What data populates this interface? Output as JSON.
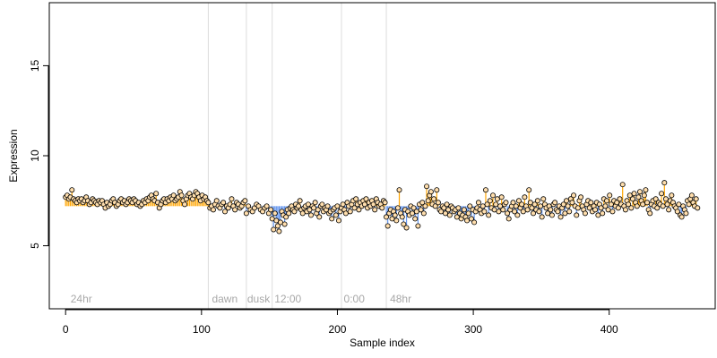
{
  "chart_data": {
    "type": "scatter",
    "xlabel": "Sample index",
    "ylabel": "Expression",
    "xlim": [
      -12,
      478
    ],
    "ylim": [
      1.5,
      18.5
    ],
    "x_ticks": [
      0,
      100,
      200,
      300,
      400
    ],
    "y_ticks": [
      5,
      10,
      15
    ],
    "baseline": 7.2,
    "grid": false,
    "colors": {
      "above": "#ffa500",
      "below": "#6495ed",
      "point_fill": "#ffdead",
      "point_stroke": "#000000",
      "divider": "#dcdcdc",
      "condition_text": "#a8a8a8"
    },
    "dividers": [
      105,
      133,
      152,
      203,
      236
    ],
    "conditions": [
      {
        "label": "24hr",
        "x": 3
      },
      {
        "label": "dawn",
        "x": 107
      },
      {
        "label": "dusk",
        "x": 133
      },
      {
        "label": "12:00",
        "x": 153
      },
      {
        "label": "0:00",
        "x": 204
      },
      {
        "label": "48hr",
        "x": 238
      }
    ],
    "segments": [
      {
        "start": 0,
        "end": 105,
        "values": [
          7.7,
          7.8,
          7.6,
          7.7,
          8.1,
          7.6,
          7.5,
          7.4,
          7.6,
          7.5,
          7.6,
          7.4,
          7.5,
          7.7,
          7.5,
          7.3,
          7.4,
          7.6,
          7.5,
          7.4,
          7.3,
          7.5,
          7.4,
          7.5,
          7.3,
          7.1,
          7.4,
          7.2,
          7.3,
          7.5,
          7.6,
          7.4,
          7.2,
          7.3,
          7.5,
          7.6,
          7.4,
          7.5,
          7.3,
          7.4,
          7.6,
          7.5,
          7.4,
          7.6,
          7.5,
          7.3,
          7.4,
          7.2,
          7.3,
          7.5,
          7.4,
          7.6,
          7.5,
          7.7,
          7.8,
          7.6,
          7.5,
          7.9,
          7.4,
          7.1,
          7.3,
          7.5,
          7.6,
          7.4,
          7.6,
          7.5,
          7.7,
          7.6,
          7.8,
          7.5,
          7.6,
          7.7,
          8.0,
          7.8,
          7.5,
          7.3,
          7.6,
          7.8,
          7.9,
          7.7,
          7.6,
          7.8,
          8.0,
          7.9,
          7.7,
          7.5,
          7.8,
          7.6,
          7.7,
          7.5
        ]
      },
      {
        "start": 105,
        "end": 133,
        "values": [
          7.4,
          7.1,
          7.2,
          7.0,
          7.3,
          7.5,
          7.2,
          7.1,
          7.3,
          7.4,
          6.9,
          7.2,
          7.1,
          7.3,
          7.6,
          7.2,
          7.0,
          7.4,
          7.3,
          7.1,
          7.2,
          7.4,
          7.5
        ]
      },
      {
        "start": 133,
        "end": 152,
        "values": [
          6.8,
          7.2,
          7.0,
          6.9,
          7.1,
          7.3,
          7.2,
          7.0,
          6.9,
          7.1,
          7.2,
          6.8,
          7.0
        ]
      },
      {
        "start": 152,
        "end": 203,
        "values": [
          6.5,
          5.9,
          6.8,
          6.4,
          6.1,
          5.8,
          6.3,
          6.9,
          6.7,
          6.2,
          6.6,
          7.0,
          6.8,
          7.1,
          7.2,
          7.0,
          6.9,
          7.3,
          7.1,
          7.2,
          7.5,
          7.0,
          6.8,
          7.1,
          7.2,
          6.9,
          7.3,
          7.0,
          6.7,
          7.2,
          7.1,
          7.4,
          6.8,
          7.0,
          6.6,
          7.2,
          7.3,
          6.9,
          7.1,
          7.0,
          7.2,
          6.8,
          6.9,
          6.5,
          7.0,
          7.1,
          6.7,
          7.2,
          6.4,
          6.9
        ]
      },
      {
        "start": 203,
        "end": 236,
        "values": [
          7.1,
          7.3,
          7.0,
          6.8,
          7.4,
          7.2,
          6.9,
          7.3,
          7.5,
          7.1,
          7.6,
          7.3,
          7.0,
          7.4,
          7.2,
          7.5,
          7.3,
          7.6,
          7.1,
          7.4,
          7.2,
          7.5,
          7.3,
          7.0,
          7.6,
          7.4,
          7.2,
          7.3,
          7.1,
          7.5,
          7.4
        ]
      },
      {
        "start": 236,
        "end": 466,
        "values": [
          6.6,
          6.1,
          6.8,
          7.0,
          6.5,
          6.9,
          6.7,
          6.4,
          7.1,
          8.1,
          6.8,
          6.6,
          6.2,
          7.0,
          6.0,
          6.9,
          6.7,
          7.2,
          6.8,
          7.1,
          6.5,
          6.9,
          6.1,
          7.3,
          7.0,
          7.4,
          6.8,
          7.2,
          8.3,
          7.5,
          7.8,
          8.0,
          7.3,
          7.6,
          7.2,
          8.1,
          7.4,
          7.0,
          6.9,
          7.2,
          7.1,
          6.8,
          7.3,
          7.0,
          6.7,
          7.2,
          7.1,
          6.9,
          7.0,
          6.6,
          7.1,
          6.8,
          6.5,
          6.7,
          7.0,
          6.6,
          6.4,
          6.8,
          7.2,
          6.5,
          7.0,
          6.3,
          6.9,
          7.1,
          7.4,
          7.0,
          6.8,
          7.2,
          6.9,
          8.1,
          7.3,
          6.7,
          7.5,
          7.1,
          7.8,
          7.0,
          7.3,
          7.6,
          6.9,
          7.2,
          7.7,
          7.0,
          7.3,
          7.4,
          6.8,
          6.5,
          7.0,
          7.2,
          7.4,
          6.9,
          7.2,
          6.7,
          7.5,
          7.1,
          7.3,
          6.9,
          7.7,
          7.2,
          7.0,
          8.1,
          7.4,
          7.1,
          6.8,
          7.3,
          7.0,
          7.5,
          6.9,
          7.2,
          6.6,
          7.6,
          7.3,
          7.1,
          6.8,
          7.2,
          7.0,
          6.7,
          7.3,
          7.4,
          7.0,
          6.9,
          7.2,
          6.6,
          7.1,
          7.3,
          6.8,
          7.5,
          7.2,
          6.9,
          7.6,
          7.4,
          7.8,
          7.2,
          6.7,
          7.1,
          7.5,
          7.7,
          7.2,
          7.0,
          6.8,
          7.3,
          7.5,
          7.1,
          7.4,
          6.9,
          7.2,
          7.0,
          7.4,
          6.7,
          7.3,
          7.1,
          6.8,
          7.6,
          7.2,
          7.5,
          7.0,
          7.8,
          7.3,
          6.9,
          7.5,
          7.2,
          7.4,
          7.1,
          7.6,
          7.3,
          8.4,
          7.2,
          7.0,
          7.5,
          7.3,
          7.8,
          7.1,
          7.6,
          7.9,
          7.4,
          7.2,
          7.7,
          8.0,
          7.5,
          7.3,
          7.8,
          8.1,
          7.4,
          7.0,
          6.8,
          7.3,
          7.5,
          7.2,
          7.6,
          7.1,
          7.4,
          7.3,
          7.9,
          7.2,
          8.5,
          7.6,
          7.3,
          7.0,
          7.5,
          7.8,
          7.4,
          7.2,
          7.1,
          6.9,
          7.3,
          6.7,
          6.6,
          7.2,
          7.0,
          6.8,
          7.5,
          7.3,
          7.6,
          7.8,
          7.4,
          7.2,
          7.6,
          7.1
        ]
      }
    ]
  }
}
